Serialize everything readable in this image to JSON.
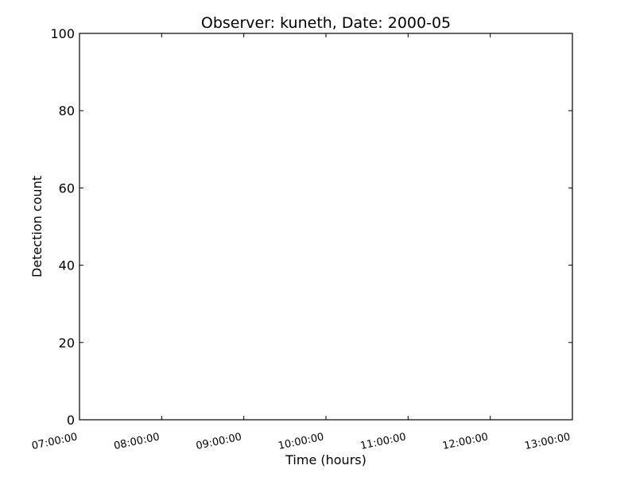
{
  "chart_data": {
    "type": "line",
    "title": "Observer: kuneth, Date: 2000-05",
    "xlabel": "Time (hours)",
    "ylabel": "Detection count",
    "x_ticks": [
      "07:00:00",
      "08:00:00",
      "09:00:00",
      "10:00:00",
      "11:00:00",
      "12:00:00",
      "13:00:00"
    ],
    "y_ticks": [
      0,
      20,
      40,
      60,
      80,
      100
    ],
    "xlim": [
      "07:00:00",
      "13:00:00"
    ],
    "ylim": [
      0,
      100
    ],
    "grid": false,
    "series": [],
    "colors": {
      "axis": "#000000",
      "background": "#ffffff"
    }
  }
}
